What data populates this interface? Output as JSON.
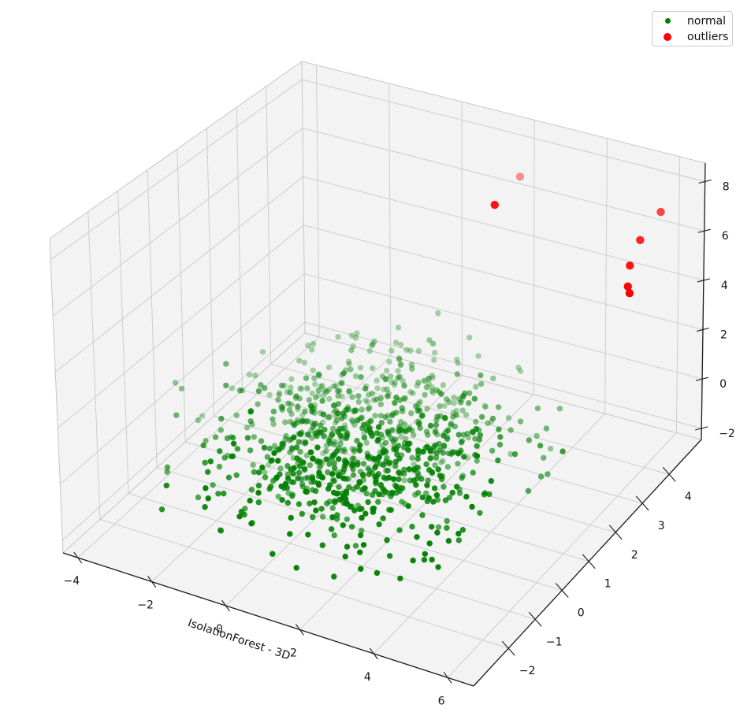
{
  "chart_data": {
    "type": "scatter3d",
    "title": "",
    "xlabel": "IsolationForest - 3D",
    "view": {
      "elev": 30,
      "azim": -60
    },
    "axes": {
      "x": {
        "label": "IsolationForest - 3D",
        "ticks": [
          -4,
          -2,
          0,
          2,
          4,
          6
        ],
        "range": [
          -4.4,
          6.7
        ]
      },
      "y": {
        "label": "",
        "ticks": [
          -2,
          -1,
          0,
          1,
          2,
          3,
          4
        ],
        "range": [
          -3.3,
          5.2
        ]
      },
      "z": {
        "label": "",
        "ticks": [
          -2,
          0,
          2,
          4,
          6,
          8
        ],
        "range": [
          -2.45,
          8.75
        ]
      }
    },
    "grid": true,
    "legend": {
      "position": "upper right",
      "items": [
        {
          "label": "normal",
          "color": "#008000",
          "marker_diameter": 7
        },
        {
          "label": "outliers",
          "color": "#ff0000",
          "marker_diameter": 10
        }
      ]
    },
    "series": [
      {
        "name": "normal",
        "color": "#008000",
        "marker_radius": 3.7,
        "cluster": {
          "count": 950,
          "seed": 13,
          "mean": [
            0.7,
            0.8,
            -0.35
          ],
          "std": [
            1.7,
            1.45,
            0.8
          ],
          "clip": {
            "x": [
              -4.2,
              5.1
            ],
            "y": [
              -2.6,
              4.3
            ],
            "z": [
              -2.35,
              1.6
            ]
          }
        }
      },
      {
        "name": "outliers",
        "color": "#ff0000",
        "marker_radius": 5.2,
        "points": [
          [
            1.8,
            4.95,
            6.6
          ],
          [
            1.45,
            4.5,
            5.75
          ],
          [
            5.75,
            4.85,
            6.75
          ],
          [
            5.45,
            4.5,
            5.85
          ],
          [
            5.25,
            4.4,
            4.85
          ],
          [
            5.2,
            4.4,
            4.0
          ],
          [
            5.25,
            4.4,
            3.75
          ]
        ],
        "alphas": [
          0.42,
          0.93,
          0.72,
          0.85,
          0.92,
          1,
          1
        ]
      }
    ],
    "colors": {
      "pane": "#f3f3f3",
      "grid": "#cdcdcd",
      "axis_line": "#1a1a1a",
      "tick_label": "#111111",
      "background": "#ffffff"
    }
  }
}
